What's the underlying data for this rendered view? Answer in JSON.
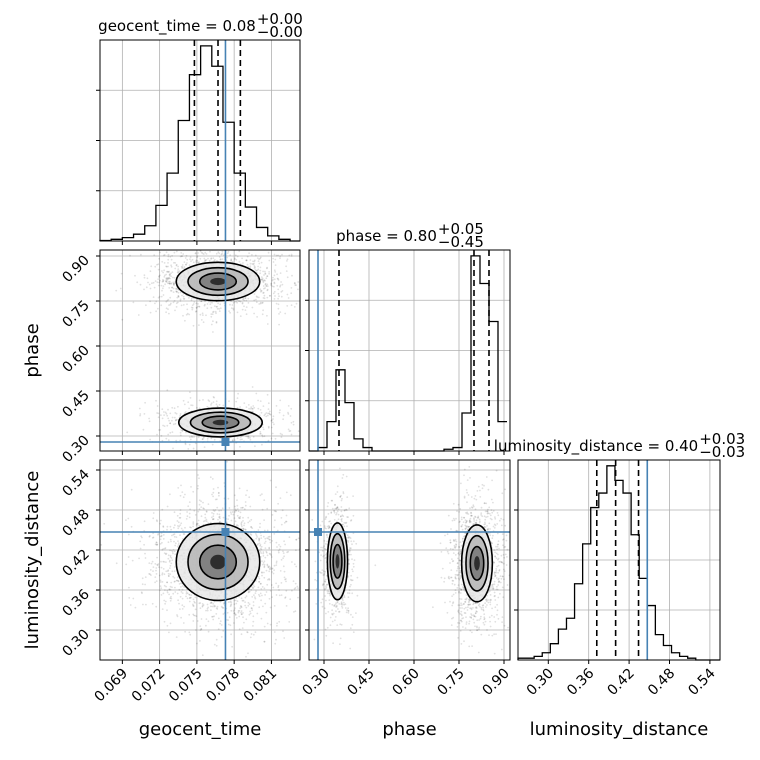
{
  "chart_data": {
    "type": "corner",
    "parameters": [
      "geocent_time",
      "phase",
      "luminosity_distance"
    ],
    "truth": {
      "geocent_time": 0.0773,
      "phase": 0.28,
      "luminosity_distance": 0.447
    },
    "truth_color": "#4682b4",
    "panels": [
      {
        "kind": "hist",
        "param": "geocent_time",
        "title": {
          "prefix": "geocent_time = ",
          "value": "0.08",
          "sup": "+0.00",
          "sub": "−0.00"
        },
        "xlim": [
          0.0672,
          0.0833
        ],
        "xticks": [
          0.069,
          0.072,
          0.075,
          0.078,
          0.081
        ],
        "xticklabels": [
          "0.069",
          "0.072",
          "0.075",
          "0.078",
          "0.081"
        ],
        "quantiles": [
          0.0748,
          0.0767,
          0.0785
        ],
        "bins": [
          0.0672,
          0.0681,
          0.069,
          0.0699,
          0.0708,
          0.0717,
          0.0726,
          0.0735,
          0.0744,
          0.0753,
          0.0762,
          0.0771,
          0.078,
          0.0789,
          0.0798,
          0.0807,
          0.0816,
          0.0825,
          0.0833
        ],
        "counts": [
          0.3,
          1,
          2,
          4,
          9,
          21,
          40,
          71,
          98,
          115,
          103,
          70,
          40,
          20,
          8,
          3,
          1,
          0
        ],
        "xlabel": ""
      },
      {
        "kind": "hist",
        "param": "phase",
        "title": {
          "prefix": "phase = ",
          "value": "0.80",
          "sup": "+0.05",
          "sub": "−0.45"
        },
        "xlim": [
          0.25,
          0.92
        ],
        "xticks": [
          0.3,
          0.45,
          0.6,
          0.75,
          0.9
        ],
        "xticklabels": [
          "0.30",
          "0.45",
          "0.60",
          "0.75",
          "0.90"
        ],
        "quantiles": [
          0.35,
          0.8,
          0.85
        ],
        "bins": [
          0.25,
          0.28,
          0.31,
          0.34,
          0.37,
          0.4,
          0.43,
          0.46,
          0.49,
          0.52,
          0.55,
          0.58,
          0.61,
          0.64,
          0.67,
          0.7,
          0.73,
          0.76,
          0.79,
          0.82,
          0.85,
          0.88,
          0.91
        ],
        "counts": [
          0,
          2,
          17,
          47,
          28,
          7,
          2,
          0,
          0,
          0,
          0,
          0,
          0,
          0,
          0,
          1,
          2,
          22,
          113,
          97,
          75,
          17
        ],
        "xlabel": ""
      },
      {
        "kind": "hist",
        "param": "luminosity_distance",
        "title": {
          "prefix": "luminosity_distance = ",
          "value": "0.40",
          "sup": "+0.03",
          "sub": "−0.03"
        },
        "xlim": [
          0.255,
          0.555
        ],
        "xticks": [
          0.3,
          0.36,
          0.42,
          0.48,
          0.54
        ],
        "xticklabels": [
          "0.30",
          "0.36",
          "0.42",
          "0.48",
          "0.54"
        ],
        "quantiles": [
          0.372,
          0.4,
          0.434
        ],
        "bins": [
          0.255,
          0.267,
          0.279,
          0.291,
          0.303,
          0.315,
          0.327,
          0.339,
          0.351,
          0.363,
          0.375,
          0.387,
          0.399,
          0.411,
          0.423,
          0.435,
          0.447,
          0.459,
          0.471,
          0.483,
          0.495,
          0.507,
          0.519,
          0.531,
          0.543,
          0.555
        ],
        "counts": [
          1,
          1,
          2,
          4,
          9,
          17,
          23,
          42,
          64,
          84,
          92,
          107,
          99,
          92,
          69,
          45,
          30,
          14,
          8,
          4,
          2,
          1,
          0,
          0,
          0
        ],
        "xlabel": "luminosity_distance"
      },
      {
        "kind": "hist2d",
        "x": "geocent_time",
        "y": "phase",
        "xlim": [
          0.0672,
          0.0833
        ],
        "ylim": [
          0.25,
          0.92
        ],
        "yticks": [
          0.3,
          0.45,
          0.6,
          0.75,
          0.9
        ],
        "yticklabels": [
          "0.30",
          "0.45",
          "0.60",
          "0.75",
          "0.90"
        ],
        "ylabel": "phase",
        "xlabel": "",
        "clusters": [
          {
            "cx": 0.0767,
            "cy": 0.815,
            "sx": 0.0021,
            "sy": 0.04,
            "n": 1400
          },
          {
            "cx": 0.0769,
            "cy": 0.345,
            "sx": 0.0021,
            "sy": 0.03,
            "n": 620
          }
        ]
      },
      {
        "kind": "hist2d",
        "x": "geocent_time",
        "y": "luminosity_distance",
        "xlim": [
          0.0672,
          0.0833
        ],
        "ylim": [
          0.255,
          0.555
        ],
        "yticks": [
          0.3,
          0.36,
          0.42,
          0.48,
          0.54
        ],
        "yticklabels": [
          "0.30",
          "0.36",
          "0.42",
          "0.48",
          "0.54"
        ],
        "ylabel": "luminosity_distance",
        "xlabel": "geocent_time",
        "clusters": [
          {
            "cx": 0.0767,
            "cy": 0.402,
            "sx": 0.0021,
            "sy": 0.036,
            "n": 1900
          }
        ]
      },
      {
        "kind": "hist2d",
        "x": "phase",
        "y": "luminosity_distance",
        "xlim": [
          0.25,
          0.92
        ],
        "ylim": [
          0.255,
          0.555
        ],
        "xticks": [
          0.3,
          0.45,
          0.6,
          0.75,
          0.9
        ],
        "xticklabels": [
          "0.30",
          "0.45",
          "0.60",
          "0.75",
          "0.90"
        ],
        "ylabel": "",
        "xlabel": "phase",
        "clusters": [
          {
            "cx": 0.345,
            "cy": 0.403,
            "sx": 0.021,
            "sy": 0.036,
            "n": 650
          },
          {
            "cx": 0.81,
            "cy": 0.4,
            "sx": 0.032,
            "sy": 0.036,
            "n": 1300
          }
        ]
      }
    ]
  }
}
